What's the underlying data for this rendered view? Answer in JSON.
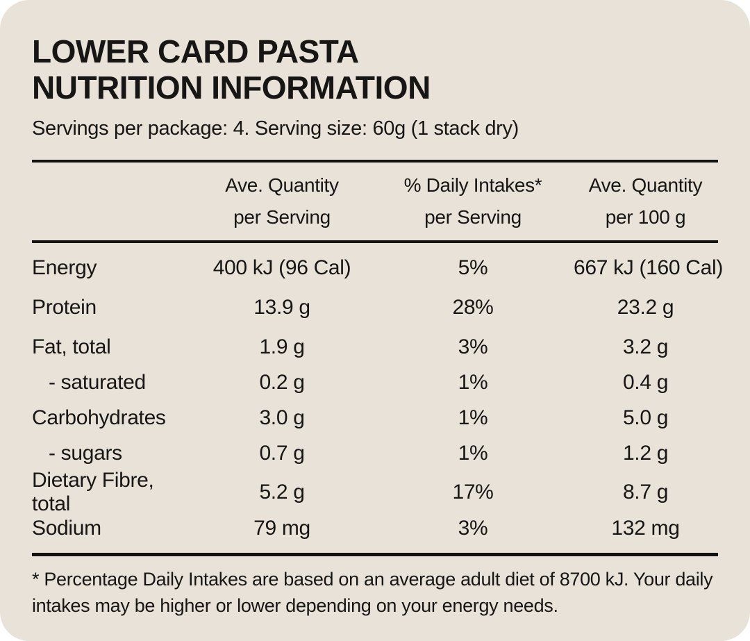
{
  "card": {
    "title_line1": "LOWER CARD PASTA",
    "title_line2": "NUTRITION INFORMATION",
    "servings_line": "Servings per package: 4. Serving size: 60g (1 stack dry)"
  },
  "table": {
    "columns": [
      {
        "line1": "Ave. Quantity",
        "line2": "per Serving"
      },
      {
        "line1": "% Daily Intakes*",
        "line2": "per Serving"
      },
      {
        "line1": "Ave. Quantity",
        "line2": "per 100 g"
      }
    ],
    "rows": [
      {
        "label": "Energy",
        "per_serving": "400 kJ (96 Cal)",
        "daily_intake": "5%",
        "per_100g": "667 kJ (160 Cal)",
        "indent": false
      },
      {
        "label": "Protein",
        "per_serving": "13.9 g",
        "daily_intake": "28%",
        "per_100g": "23.2 g",
        "indent": false
      },
      {
        "label": "Fat, total",
        "per_serving": "1.9 g",
        "daily_intake": "3%",
        "per_100g": "3.2 g",
        "indent": false
      },
      {
        "label": "- saturated",
        "per_serving": "0.2 g",
        "daily_intake": "1%",
        "per_100g": "0.4 g",
        "indent": true
      },
      {
        "label": "Carbohydrates",
        "per_serving": "3.0 g",
        "daily_intake": "1%",
        "per_100g": "5.0 g",
        "indent": false
      },
      {
        "label": "- sugars",
        "per_serving": "0.7 g",
        "daily_intake": "1%",
        "per_100g": "1.2 g",
        "indent": true
      },
      {
        "label": "Dietary Fibre, total",
        "per_serving": "5.2 g",
        "daily_intake": "17%",
        "per_100g": "8.7 g",
        "indent": false
      },
      {
        "label": "Sodium",
        "per_serving": "79 mg",
        "daily_intake": "3%",
        "per_100g": "132 mg",
        "indent": false
      }
    ]
  },
  "footnote": "* Percentage Daily Intakes are based on an average adult diet of 8700 kJ. Your daily intakes may be higher or lower depending on your energy needs.",
  "colors": {
    "page_background": "#ffffff",
    "card_background": "#e8e2d9",
    "text": "#171614",
    "rule": "#121212"
  }
}
